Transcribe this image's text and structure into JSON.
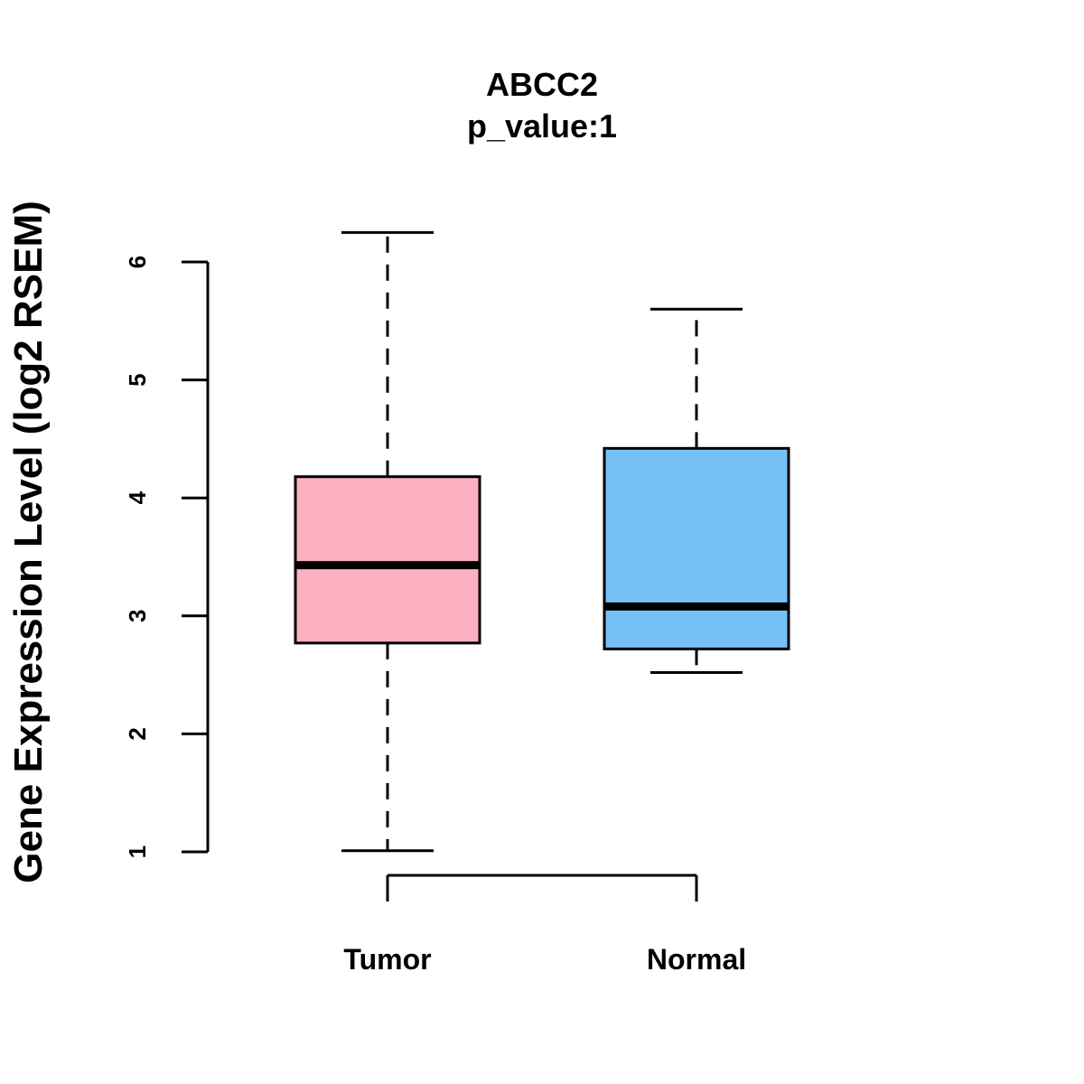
{
  "chart_data": {
    "type": "boxplot",
    "title": "ABCC2",
    "subtitle": "p_value:1",
    "xlabel": "",
    "ylabel": "Gene Expression Level (log2 RSEM)",
    "ylim": [
      1,
      6
    ],
    "yticks": [
      1,
      2,
      3,
      4,
      5,
      6
    ],
    "grid": false,
    "categories": [
      "Tumor",
      "Normal"
    ],
    "boxes": [
      {
        "name": "Tumor",
        "min": 1.01,
        "q1": 2.77,
        "median": 3.43,
        "q3": 4.18,
        "max": 6.25,
        "color": "#FBB0C1"
      },
      {
        "name": "Normal",
        "min": 2.52,
        "q1": 2.72,
        "median": 3.08,
        "q3": 4.42,
        "max": 5.6,
        "color": "#77C0F7"
      }
    ]
  }
}
